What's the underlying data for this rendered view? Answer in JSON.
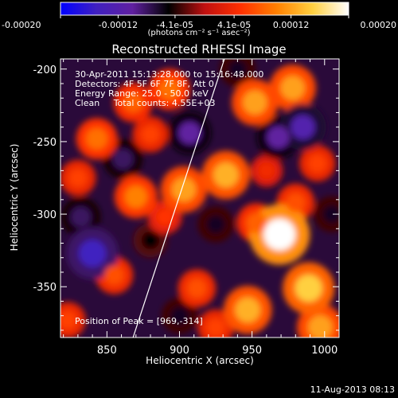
{
  "colorbar": {
    "tick_labels": [
      "-0.00020",
      "-0.00012",
      "-4.1e-05",
      "4.1e-05",
      "0.00012",
      "0.00020"
    ],
    "tick_values": [
      -0.0002,
      -0.00012,
      -4.1e-05,
      4.1e-05,
      0.00012,
      0.0002
    ],
    "range": [
      -0.0002,
      0.0002
    ],
    "unit_label": "(photons cm⁻² s⁻¹ asec⁻²)",
    "colors": [
      "#0000ff",
      "#4020c0",
      "#6020a0",
      "#000000",
      "#c01010",
      "#ff3000",
      "#ff8000",
      "#ffd040",
      "#ffffff"
    ]
  },
  "header": {
    "title": "Reconstructed RHESSI Image"
  },
  "annotations": {
    "time_range": "30-Apr-2011 15:13:28.000 to 15:16:48.000",
    "detectors": "Detectors: 4F 5F 6F 7F 8F, Att 0",
    "energy_range": "Energy Range: 25.0 - 50.0 keV",
    "clean_counts": "Clean     Total counts: 4.55E+03",
    "peak_position": "Position of Peak = [969,-314]"
  },
  "footer": {
    "timestamp": "11-Aug-2013 08:13"
  },
  "chart_data": {
    "type": "heatmap",
    "title": "Reconstructed RHESSI Image",
    "xlabel": "Heliocentric X (arcsec)",
    "ylabel": "Heliocentric Y (arcsec)",
    "xlim": [
      818,
      1010
    ],
    "ylim": [
      -385,
      -193
    ],
    "x_ticks": [
      850,
      900,
      950,
      1000
    ],
    "x_tick_labels": [
      "850",
      "900",
      "950",
      "1000"
    ],
    "y_ticks": [
      -200,
      -250,
      -300,
      -350
    ],
    "y_tick_labels": [
      "-200",
      "-250",
      "-300",
      "-350"
    ],
    "peak": [
      969,
      -314
    ],
    "limb_line": [
      [
        868,
        -385
      ],
      [
        931,
        -193
      ]
    ],
    "blobs": [
      {
        "x": 969,
        "y": -314,
        "value": 0.0002
      },
      {
        "x": 989,
        "y": -351,
        "value": 0.00015
      },
      {
        "x": 947,
        "y": -366,
        "value": 0.00013
      },
      {
        "x": 953,
        "y": -306,
        "value": 8e-05
      },
      {
        "x": 980,
        "y": -292,
        "value": 7e-05
      },
      {
        "x": 978,
        "y": -213,
        "value": 0.00012
      },
      {
        "x": 952,
        "y": -223,
        "value": 0.00012
      },
      {
        "x": 932,
        "y": -273,
        "value": 0.00013
      },
      {
        "x": 903,
        "y": -283,
        "value": 0.00012
      },
      {
        "x": 870,
        "y": -288,
        "value": 0.0001
      },
      {
        "x": 843,
        "y": -248,
        "value": 9e-05
      },
      {
        "x": 868,
        "y": -223,
        "value": 8e-05
      },
      {
        "x": 893,
        "y": -214,
        "value": 9e-05
      },
      {
        "x": 855,
        "y": -342,
        "value": 7e-05
      },
      {
        "x": 823,
        "y": -373,
        "value": 6e-05
      },
      {
        "x": 912,
        "y": -351,
        "value": 7e-05
      },
      {
        "x": 995,
        "y": -265,
        "value": 6e-05
      },
      {
        "x": 925,
        "y": -378,
        "value": 6e-05
      },
      {
        "x": 997,
        "y": -378,
        "value": 0.00012
      },
      {
        "x": 840,
        "y": -327,
        "value": -0.00015
      },
      {
        "x": 832,
        "y": -302,
        "value": -8e-05
      },
      {
        "x": 907,
        "y": -244,
        "value": -0.0001
      },
      {
        "x": 985,
        "y": -240,
        "value": -0.00012
      },
      {
        "x": 968,
        "y": -247,
        "value": -0.0001
      },
      {
        "x": 861,
        "y": -262,
        "value": -8e-05
      },
      {
        "x": 925,
        "y": -307,
        "value": -6e-05
      },
      {
        "x": 900,
        "y": -370,
        "value": -6e-05
      },
      {
        "x": 880,
        "y": -318,
        "value": -5e-05
      },
      {
        "x": 1005,
        "y": -300,
        "value": -6e-05
      },
      {
        "x": 940,
        "y": -200,
        "value": -6e-05
      },
      {
        "x": 880,
        "y": -245,
        "value": 6e-05
      },
      {
        "x": 890,
        "y": -302,
        "value": 5e-05
      },
      {
        "x": 830,
        "y": -275,
        "value": 6e-05
      },
      {
        "x": 960,
        "y": -270,
        "value": 4e-05
      }
    ]
  }
}
